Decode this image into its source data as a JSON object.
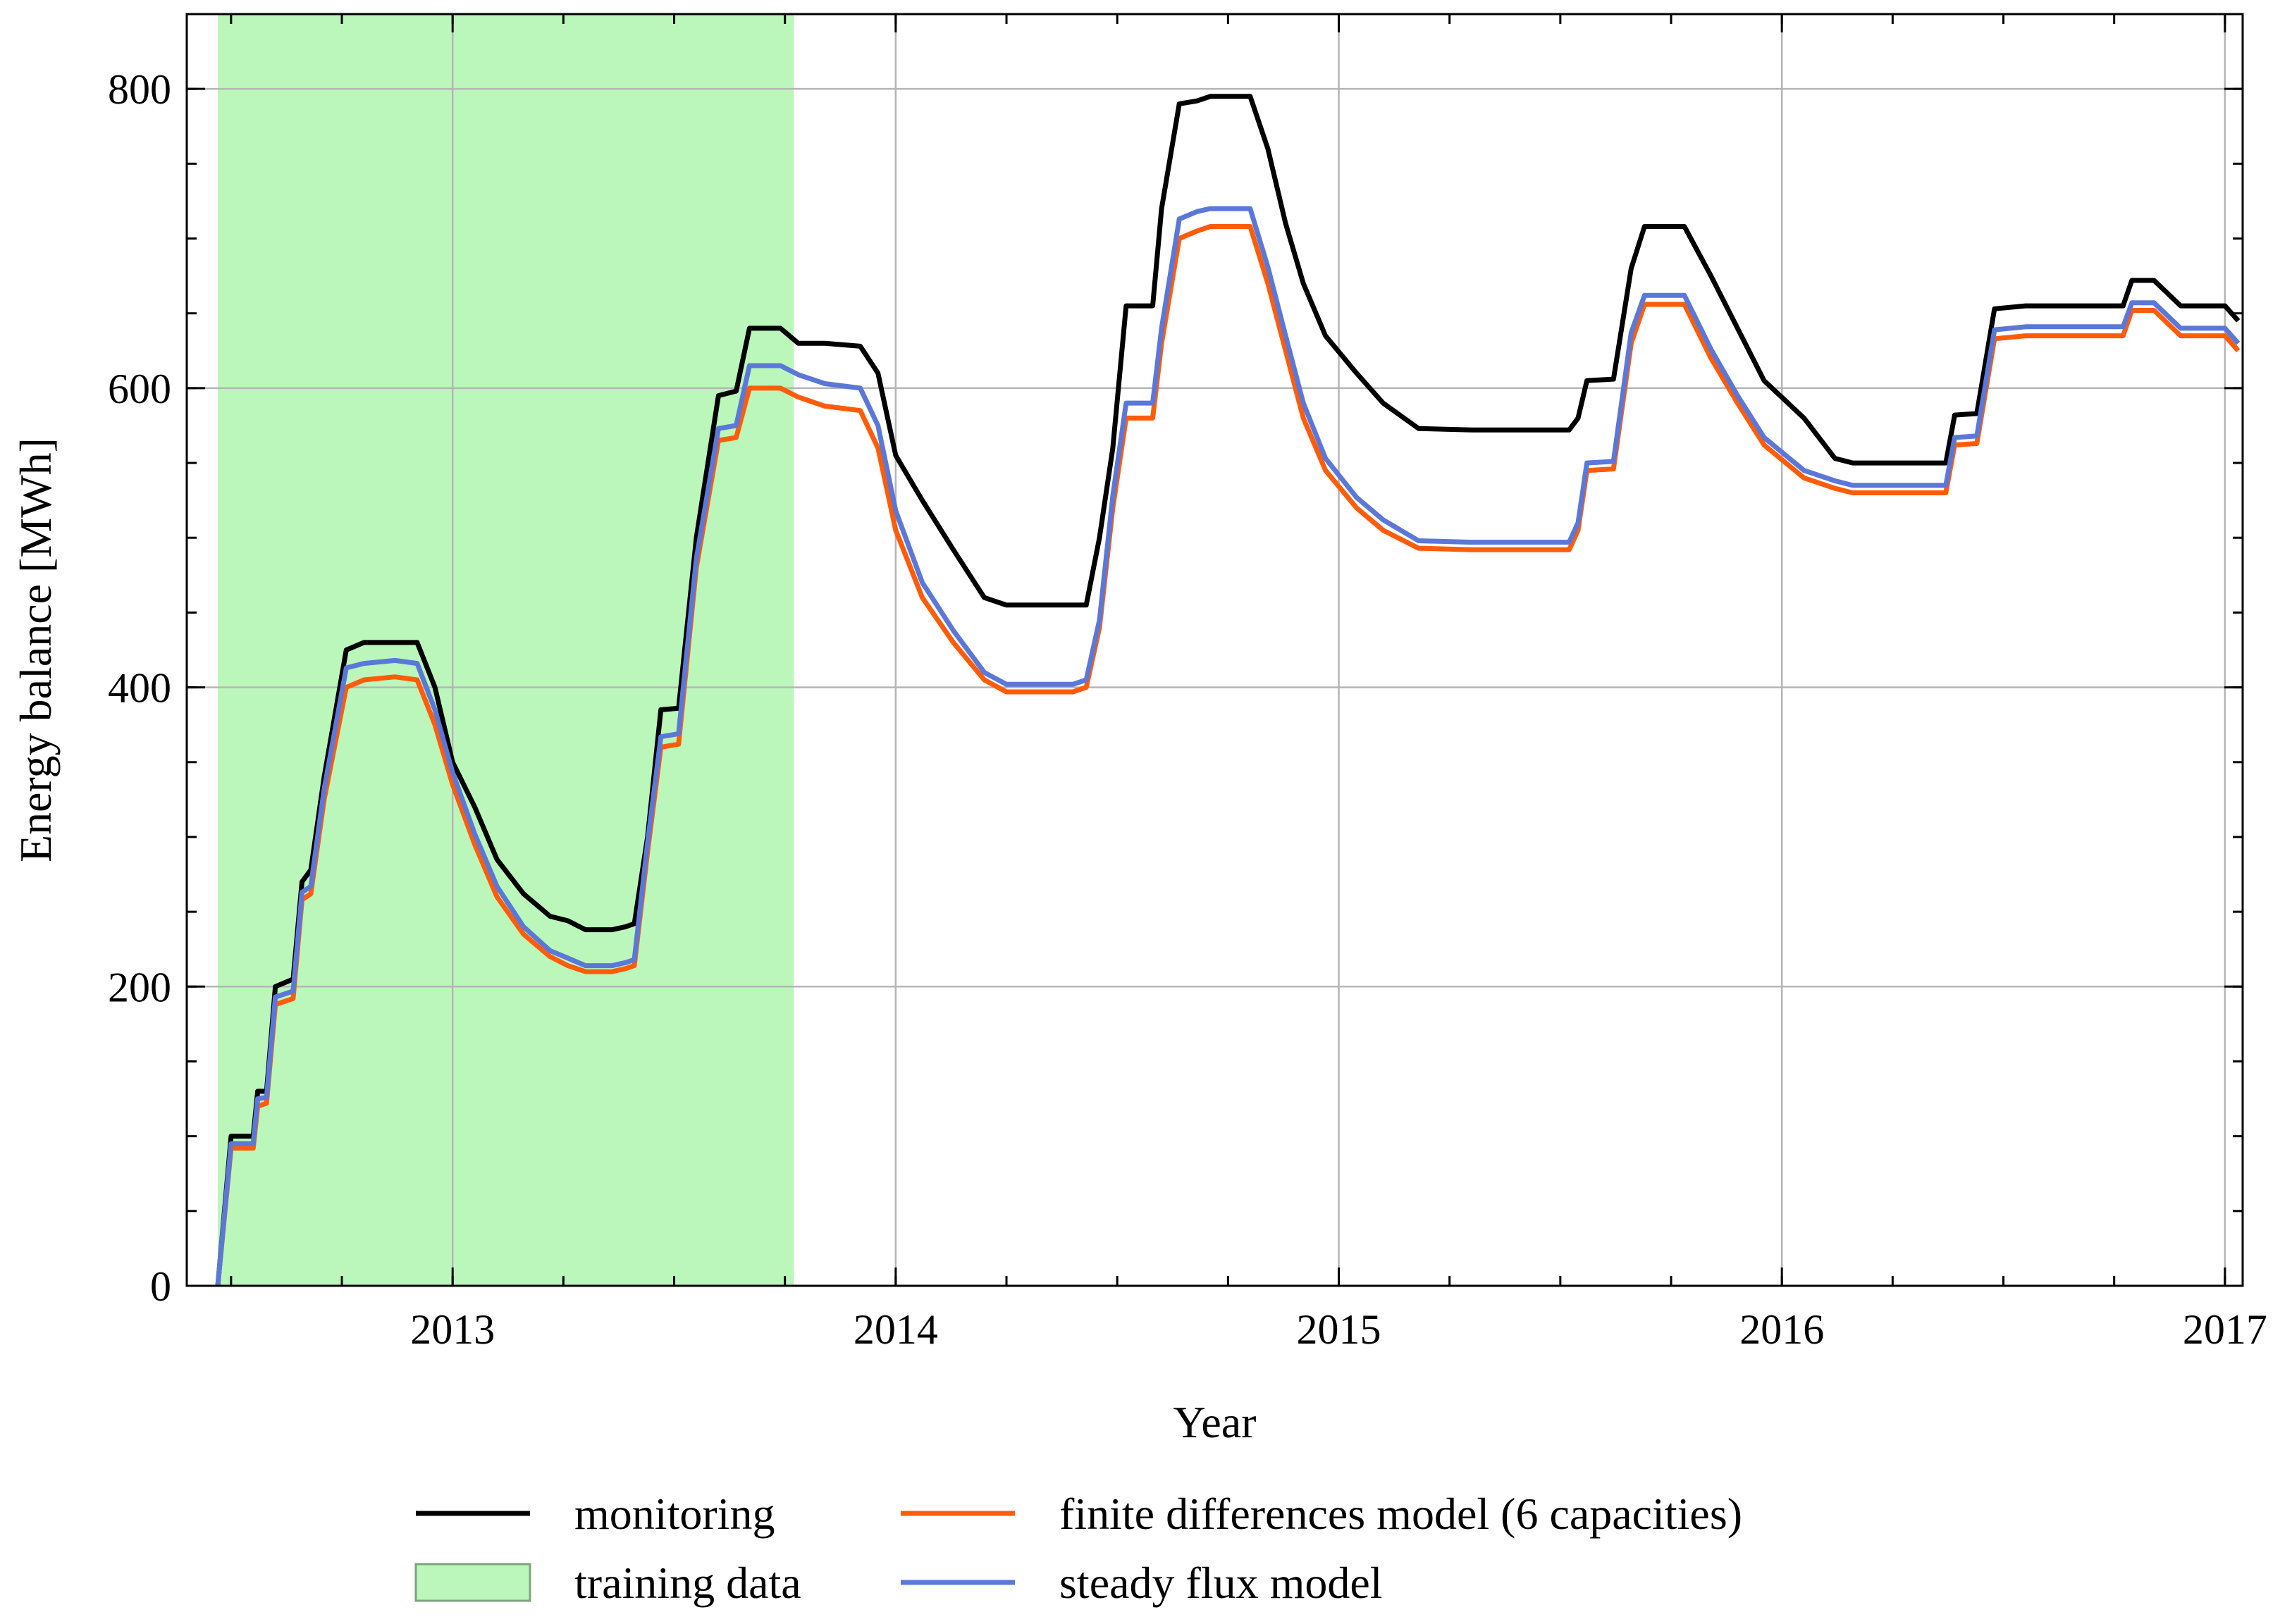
{
  "chart_data": {
    "type": "line",
    "xlabel": "Year",
    "ylabel": "Energy balance [MWh]",
    "xlim": [
      2012.4,
      2017.04
    ],
    "ylim": [
      0,
      850
    ],
    "x_ticks": [
      2013,
      2014,
      2015,
      2016,
      2017
    ],
    "x_tick_labels": [
      "2013",
      "2014",
      "2015",
      "2016",
      "2017"
    ],
    "y_ticks": [
      0,
      200,
      400,
      600,
      800
    ],
    "y_tick_labels": [
      "0",
      "200",
      "400",
      "600",
      "800"
    ],
    "grid": true,
    "legend_position": "bottom",
    "training_data": {
      "label": "training data",
      "x_start": 2012.47,
      "x_end": 2013.77,
      "color": "#bbf7bb"
    },
    "series": [
      {
        "name": "monitoring",
        "color": "#000000",
        "points": [
          [
            2012.47,
            0
          ],
          [
            2012.5,
            100
          ],
          [
            2012.55,
            100
          ],
          [
            2012.56,
            130
          ],
          [
            2012.58,
            130
          ],
          [
            2012.6,
            200
          ],
          [
            2012.64,
            205
          ],
          [
            2012.66,
            270
          ],
          [
            2012.68,
            278
          ],
          [
            2012.71,
            340
          ],
          [
            2012.76,
            425
          ],
          [
            2012.8,
            430
          ],
          [
            2012.87,
            430
          ],
          [
            2012.92,
            430
          ],
          [
            2012.96,
            400
          ],
          [
            2013.0,
            350
          ],
          [
            2013.05,
            320
          ],
          [
            2013.1,
            285
          ],
          [
            2013.16,
            262
          ],
          [
            2013.22,
            247
          ],
          [
            2013.26,
            244
          ],
          [
            2013.3,
            238
          ],
          [
            2013.36,
            238
          ],
          [
            2013.39,
            240
          ],
          [
            2013.41,
            242
          ],
          [
            2013.44,
            300
          ],
          [
            2013.47,
            385
          ],
          [
            2013.51,
            386
          ],
          [
            2013.55,
            500
          ],
          [
            2013.6,
            595
          ],
          [
            2013.64,
            598
          ],
          [
            2013.67,
            640
          ],
          [
            2013.74,
            640
          ],
          [
            2013.78,
            630
          ],
          [
            2013.84,
            630
          ],
          [
            2013.92,
            628
          ],
          [
            2013.96,
            610
          ],
          [
            2014.0,
            555
          ],
          [
            2014.06,
            525
          ],
          [
            2014.13,
            492
          ],
          [
            2014.2,
            460
          ],
          [
            2014.25,
            455
          ],
          [
            2014.4,
            455
          ],
          [
            2014.43,
            455
          ],
          [
            2014.46,
            500
          ],
          [
            2014.49,
            560
          ],
          [
            2014.52,
            655
          ],
          [
            2014.58,
            655
          ],
          [
            2014.6,
            720
          ],
          [
            2014.64,
            790
          ],
          [
            2014.68,
            792
          ],
          [
            2014.71,
            795
          ],
          [
            2014.8,
            795
          ],
          [
            2014.84,
            760
          ],
          [
            2014.88,
            710
          ],
          [
            2014.92,
            670
          ],
          [
            2014.97,
            635
          ],
          [
            2015.04,
            610
          ],
          [
            2015.1,
            590
          ],
          [
            2015.18,
            573
          ],
          [
            2015.3,
            572
          ],
          [
            2015.52,
            572
          ],
          [
            2015.54,
            580
          ],
          [
            2015.56,
            605
          ],
          [
            2015.62,
            606
          ],
          [
            2015.66,
            680
          ],
          [
            2015.69,
            708
          ],
          [
            2015.78,
            708
          ],
          [
            2015.84,
            675
          ],
          [
            2015.9,
            640
          ],
          [
            2015.96,
            605
          ],
          [
            2016.05,
            580
          ],
          [
            2016.12,
            553
          ],
          [
            2016.16,
            550
          ],
          [
            2016.35,
            550
          ],
          [
            2016.37,
            550
          ],
          [
            2016.39,
            582
          ],
          [
            2016.44,
            583
          ],
          [
            2016.48,
            653
          ],
          [
            2016.55,
            655
          ],
          [
            2016.72,
            655
          ],
          [
            2016.77,
            655
          ],
          [
            2016.79,
            672
          ],
          [
            2016.84,
            672
          ],
          [
            2016.9,
            655
          ],
          [
            2017.0,
            655
          ],
          [
            2017.03,
            645
          ]
        ]
      },
      {
        "name": "finite differences model (6 capacities)",
        "color": "#ff5c0a",
        "points": [
          [
            2012.47,
            0
          ],
          [
            2012.5,
            92
          ],
          [
            2012.55,
            92
          ],
          [
            2012.56,
            120
          ],
          [
            2012.58,
            122
          ],
          [
            2012.6,
            188
          ],
          [
            2012.64,
            192
          ],
          [
            2012.66,
            258
          ],
          [
            2012.68,
            262
          ],
          [
            2012.71,
            325
          ],
          [
            2012.76,
            400
          ],
          [
            2012.8,
            405
          ],
          [
            2012.87,
            407
          ],
          [
            2012.92,
            405
          ],
          [
            2012.96,
            375
          ],
          [
            2013.0,
            335
          ],
          [
            2013.05,
            295
          ],
          [
            2013.1,
            260
          ],
          [
            2013.16,
            235
          ],
          [
            2013.22,
            220
          ],
          [
            2013.26,
            214
          ],
          [
            2013.3,
            210
          ],
          [
            2013.36,
            210
          ],
          [
            2013.39,
            212
          ],
          [
            2013.41,
            214
          ],
          [
            2013.44,
            290
          ],
          [
            2013.47,
            360
          ],
          [
            2013.51,
            362
          ],
          [
            2013.55,
            480
          ],
          [
            2013.6,
            565
          ],
          [
            2013.64,
            567
          ],
          [
            2013.67,
            600
          ],
          [
            2013.74,
            600
          ],
          [
            2013.78,
            594
          ],
          [
            2013.84,
            588
          ],
          [
            2013.92,
            585
          ],
          [
            2013.96,
            560
          ],
          [
            2014.0,
            505
          ],
          [
            2014.06,
            460
          ],
          [
            2014.13,
            430
          ],
          [
            2014.2,
            405
          ],
          [
            2014.25,
            397
          ],
          [
            2014.4,
            397
          ],
          [
            2014.43,
            400
          ],
          [
            2014.46,
            440
          ],
          [
            2014.49,
            520
          ],
          [
            2014.52,
            580
          ],
          [
            2014.58,
            580
          ],
          [
            2014.6,
            630
          ],
          [
            2014.64,
            700
          ],
          [
            2014.68,
            705
          ],
          [
            2014.71,
            708
          ],
          [
            2014.8,
            708
          ],
          [
            2014.84,
            670
          ],
          [
            2014.88,
            625
          ],
          [
            2014.92,
            580
          ],
          [
            2014.97,
            545
          ],
          [
            2015.04,
            520
          ],
          [
            2015.1,
            505
          ],
          [
            2015.18,
            493
          ],
          [
            2015.3,
            492
          ],
          [
            2015.52,
            492
          ],
          [
            2015.54,
            505
          ],
          [
            2015.56,
            545
          ],
          [
            2015.62,
            546
          ],
          [
            2015.66,
            630
          ],
          [
            2015.69,
            656
          ],
          [
            2015.78,
            656
          ],
          [
            2015.84,
            620
          ],
          [
            2015.9,
            590
          ],
          [
            2015.96,
            562
          ],
          [
            2016.05,
            540
          ],
          [
            2016.12,
            533
          ],
          [
            2016.16,
            530
          ],
          [
            2016.35,
            530
          ],
          [
            2016.37,
            530
          ],
          [
            2016.39,
            562
          ],
          [
            2016.44,
            563
          ],
          [
            2016.48,
            633
          ],
          [
            2016.55,
            635
          ],
          [
            2016.72,
            635
          ],
          [
            2016.77,
            635
          ],
          [
            2016.79,
            652
          ],
          [
            2016.84,
            652
          ],
          [
            2016.9,
            635
          ],
          [
            2017.0,
            635
          ],
          [
            2017.03,
            625
          ]
        ]
      },
      {
        "name": "steady flux model",
        "color": "#5b78d8",
        "points": [
          [
            2012.47,
            0
          ],
          [
            2012.5,
            95
          ],
          [
            2012.55,
            95
          ],
          [
            2012.56,
            125
          ],
          [
            2012.58,
            126
          ],
          [
            2012.6,
            193
          ],
          [
            2012.64,
            197
          ],
          [
            2012.66,
            263
          ],
          [
            2012.68,
            267
          ],
          [
            2012.71,
            332
          ],
          [
            2012.76,
            413
          ],
          [
            2012.8,
            416
          ],
          [
            2012.87,
            418
          ],
          [
            2012.92,
            416
          ],
          [
            2012.96,
            385
          ],
          [
            2013.0,
            343
          ],
          [
            2013.05,
            302
          ],
          [
            2013.1,
            267
          ],
          [
            2013.16,
            240
          ],
          [
            2013.22,
            224
          ],
          [
            2013.26,
            219
          ],
          [
            2013.3,
            214
          ],
          [
            2013.36,
            214
          ],
          [
            2013.39,
            216
          ],
          [
            2013.41,
            218
          ],
          [
            2013.44,
            296
          ],
          [
            2013.47,
            367
          ],
          [
            2013.51,
            369
          ],
          [
            2013.55,
            486
          ],
          [
            2013.6,
            573
          ],
          [
            2013.64,
            575
          ],
          [
            2013.67,
            615
          ],
          [
            2013.74,
            615
          ],
          [
            2013.78,
            609
          ],
          [
            2013.84,
            603
          ],
          [
            2013.92,
            600
          ],
          [
            2013.96,
            575
          ],
          [
            2014.0,
            518
          ],
          [
            2014.06,
            470
          ],
          [
            2014.13,
            438
          ],
          [
            2014.2,
            410
          ],
          [
            2014.25,
            402
          ],
          [
            2014.4,
            402
          ],
          [
            2014.43,
            405
          ],
          [
            2014.46,
            445
          ],
          [
            2014.49,
            528
          ],
          [
            2014.52,
            590
          ],
          [
            2014.58,
            590
          ],
          [
            2014.6,
            640
          ],
          [
            2014.64,
            713
          ],
          [
            2014.68,
            718
          ],
          [
            2014.71,
            720
          ],
          [
            2014.8,
            720
          ],
          [
            2014.84,
            681
          ],
          [
            2014.88,
            635
          ],
          [
            2014.92,
            590
          ],
          [
            2014.97,
            553
          ],
          [
            2015.04,
            527
          ],
          [
            2015.1,
            512
          ],
          [
            2015.18,
            498
          ],
          [
            2015.3,
            497
          ],
          [
            2015.52,
            497
          ],
          [
            2015.54,
            510
          ],
          [
            2015.56,
            550
          ],
          [
            2015.62,
            551
          ],
          [
            2015.66,
            637
          ],
          [
            2015.69,
            662
          ],
          [
            2015.78,
            662
          ],
          [
            2015.84,
            626
          ],
          [
            2015.9,
            595
          ],
          [
            2015.96,
            567
          ],
          [
            2016.05,
            545
          ],
          [
            2016.12,
            538
          ],
          [
            2016.16,
            535
          ],
          [
            2016.35,
            535
          ],
          [
            2016.37,
            535
          ],
          [
            2016.39,
            567
          ],
          [
            2016.44,
            568
          ],
          [
            2016.48,
            639
          ],
          [
            2016.55,
            641
          ],
          [
            2016.72,
            641
          ],
          [
            2016.77,
            641
          ],
          [
            2016.79,
            657
          ],
          [
            2016.84,
            657
          ],
          [
            2016.9,
            640
          ],
          [
            2017.0,
            640
          ],
          [
            2017.03,
            630
          ]
        ]
      }
    ]
  }
}
